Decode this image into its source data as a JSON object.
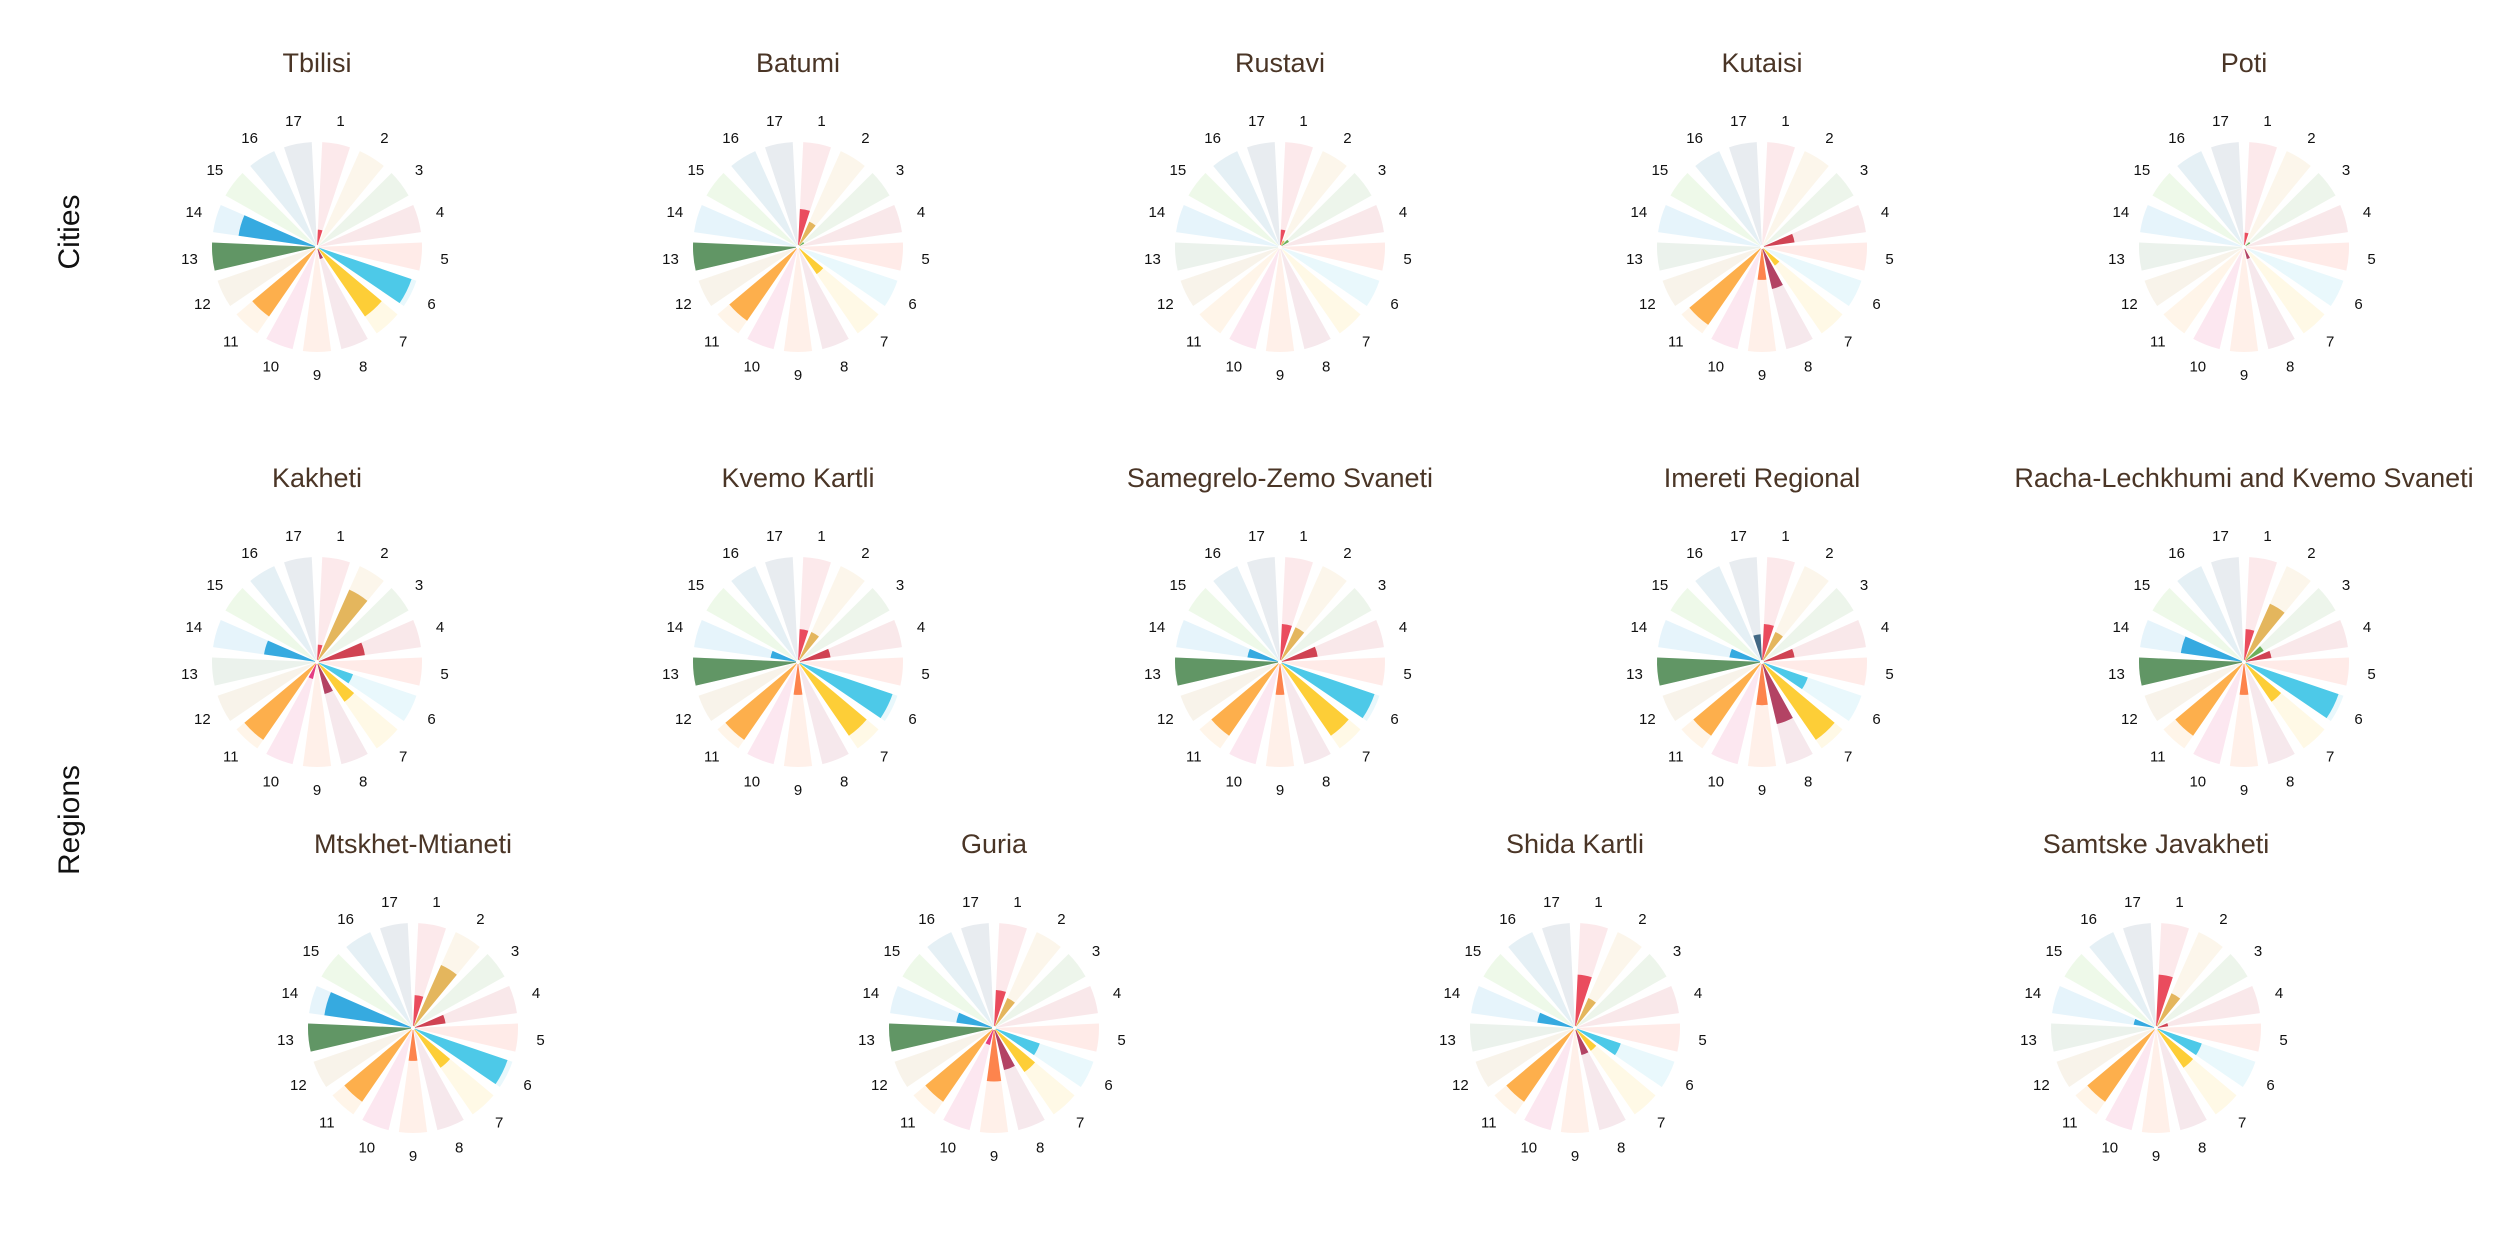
{
  "row_labels": [
    "Cities",
    "Regions"
  ],
  "sdg_colors": [
    "#e5243b",
    "#dda63a",
    "#4c9f38",
    "#c5192d",
    "#ff3a21",
    "#26bde2",
    "#fcc30b",
    "#a21942",
    "#fd6925",
    "#dd1367",
    "#fd9d24",
    "#bf8b2e",
    "#3f7e44",
    "#0a97d9",
    "#56c02b",
    "#00689d",
    "#19486a"
  ],
  "chart_data": [
    {
      "type": "polar-bar",
      "group": "Cities",
      "title": "Tbilisi",
      "categories": [
        "1",
        "2",
        "3",
        "4",
        "5",
        "6",
        "7",
        "8",
        "9",
        "10",
        "11",
        "12",
        "13",
        "14",
        "15",
        "16",
        "17"
      ],
      "values": [
        0.15,
        0,
        0,
        0,
        0,
        0.95,
        0.8,
        0.1,
        0,
        0,
        0.8,
        0,
        1,
        0.75,
        0,
        0,
        0
      ]
    },
    {
      "type": "polar-bar",
      "group": "Cities",
      "title": "Batumi",
      "categories": [
        "1",
        "2",
        "3",
        "4",
        "5",
        "6",
        "7",
        "8",
        "9",
        "10",
        "11",
        "12",
        "13",
        "14",
        "15",
        "16",
        "17"
      ],
      "values": [
        0.35,
        0.25,
        0.05,
        0,
        0,
        0,
        0.3,
        0,
        0,
        0,
        0.85,
        0,
        1,
        0,
        0,
        0,
        0
      ]
    },
    {
      "type": "polar-bar",
      "group": "Cities",
      "title": "Rustavi",
      "categories": [
        "1",
        "2",
        "3",
        "4",
        "5",
        "6",
        "7",
        "8",
        "9",
        "10",
        "11",
        "12",
        "13",
        "14",
        "15",
        "16",
        "17"
      ],
      "values": [
        0.15,
        0.05,
        0.08,
        0,
        0,
        0,
        0,
        0,
        0,
        0,
        0,
        0,
        0,
        0,
        0,
        0,
        0
      ]
    },
    {
      "type": "polar-bar",
      "group": "Cities",
      "title": "Kutaisi",
      "categories": [
        "1",
        "2",
        "3",
        "4",
        "5",
        "6",
        "7",
        "8",
        "9",
        "10",
        "11",
        "12",
        "13",
        "14",
        "15",
        "16",
        "17"
      ],
      "values": [
        0,
        0,
        0,
        0.3,
        0,
        0,
        0.2,
        0.4,
        0.3,
        0,
        0.9,
        0,
        0,
        0,
        0,
        0,
        0
      ]
    },
    {
      "type": "polar-bar",
      "group": "Cities",
      "title": "Poti",
      "categories": [
        "1",
        "2",
        "3",
        "4",
        "5",
        "6",
        "7",
        "8",
        "9",
        "10",
        "11",
        "12",
        "13",
        "14",
        "15",
        "16",
        "17"
      ],
      "values": [
        0.12,
        0,
        0.05,
        0,
        0,
        0,
        0,
        0.1,
        0,
        0,
        0,
        0,
        0,
        0,
        0,
        0,
        0
      ]
    },
    {
      "type": "polar-bar",
      "group": "Regions",
      "title": "Kakheti",
      "categories": [
        "1",
        "2",
        "3",
        "4",
        "5",
        "6",
        "7",
        "8",
        "9",
        "10",
        "11",
        "12",
        "13",
        "14",
        "15",
        "16",
        "17"
      ],
      "values": [
        0.15,
        0.75,
        0,
        0.45,
        0,
        0.35,
        0.45,
        0.3,
        0,
        0.15,
        0.9,
        0,
        0,
        0.5,
        0,
        0,
        0
      ]
    },
    {
      "type": "polar-bar",
      "group": "Regions",
      "title": "Kvemo Kartli",
      "categories": [
        "1",
        "2",
        "3",
        "4",
        "5",
        "6",
        "7",
        "8",
        "9",
        "10",
        "11",
        "12",
        "13",
        "14",
        "15",
        "16",
        "17"
      ],
      "values": [
        0.3,
        0.3,
        0,
        0.3,
        0,
        0.95,
        0.85,
        0,
        0.3,
        0,
        0.9,
        0,
        1,
        0.25,
        0,
        0,
        0
      ]
    },
    {
      "type": "polar-bar",
      "group": "Regions",
      "title": "Samegrelo-Zemo Svaneti",
      "categories": [
        "1",
        "2",
        "3",
        "4",
        "5",
        "6",
        "7",
        "8",
        "9",
        "10",
        "11",
        "12",
        "13",
        "14",
        "15",
        "16",
        "17"
      ],
      "values": [
        0.35,
        0.35,
        0,
        0.35,
        0,
        0.95,
        0.85,
        0,
        0.3,
        0,
        0.85,
        0,
        1,
        0.3,
        0,
        0,
        0
      ]
    },
    {
      "type": "polar-bar",
      "group": "Regions",
      "title": "Imereti Regional",
      "categories": [
        "1",
        "2",
        "3",
        "4",
        "5",
        "6",
        "7",
        "8",
        "9",
        "10",
        "11",
        "12",
        "13",
        "14",
        "15",
        "16",
        "17"
      ],
      "values": [
        0.35,
        0.3,
        0,
        0.3,
        0,
        0.45,
        0.9,
        0.6,
        0.4,
        0,
        0.85,
        0,
        1,
        0.3,
        0,
        0,
        0.25
      ]
    },
    {
      "type": "polar-bar",
      "group": "Regions",
      "title": "Racha-Lechkhumi and Kvemo Svaneti",
      "categories": [
        "1",
        "2",
        "3",
        "4",
        "5",
        "6",
        "7",
        "8",
        "9",
        "10",
        "11",
        "12",
        "13",
        "14",
        "15",
        "16",
        "17"
      ],
      "values": [
        0.3,
        0.6,
        0.2,
        0.25,
        0,
        0.95,
        0.45,
        0,
        0.3,
        0,
        0.85,
        0,
        1,
        0.6,
        0,
        0,
        0
      ]
    },
    {
      "type": "polar-bar",
      "group": "Regions",
      "title": "Mtskhet-Mtianeti",
      "categories": [
        "1",
        "2",
        "3",
        "4",
        "5",
        "6",
        "7",
        "8",
        "9",
        "10",
        "11",
        "12",
        "13",
        "14",
        "15",
        "16",
        "17"
      ],
      "values": [
        0.3,
        0.65,
        0,
        0.3,
        0,
        0.95,
        0.45,
        0,
        0.3,
        0,
        0.85,
        0,
        1,
        0.85,
        0,
        0,
        0
      ]
    },
    {
      "type": "polar-bar",
      "group": "Regions",
      "title": "Guria",
      "categories": [
        "1",
        "2",
        "3",
        "4",
        "5",
        "6",
        "7",
        "8",
        "9",
        "10",
        "11",
        "12",
        "13",
        "14",
        "15",
        "16",
        "17"
      ],
      "values": [
        0.35,
        0.3,
        0,
        0,
        0,
        0.45,
        0.5,
        0.4,
        0.5,
        0.15,
        0.85,
        0,
        1,
        0.35,
        0,
        0,
        0
      ]
    },
    {
      "type": "polar-bar",
      "group": "Regions",
      "title": "Shida Kartli",
      "categories": [
        "1",
        "2",
        "3",
        "4",
        "5",
        "6",
        "7",
        "8",
        "9",
        "10",
        "11",
        "12",
        "13",
        "14",
        "15",
        "16",
        "17"
      ],
      "values": [
        0.5,
        0.3,
        0,
        0,
        0,
        0.45,
        0.25,
        0.25,
        0,
        0,
        0.85,
        0,
        0,
        0.35,
        0,
        0,
        0
      ]
    },
    {
      "type": "polar-bar",
      "group": "Regions",
      "title": "Samtske Javakheti",
      "categories": [
        "1",
        "2",
        "3",
        "4",
        "5",
        "6",
        "7",
        "8",
        "9",
        "10",
        "11",
        "12",
        "13",
        "14",
        "15",
        "16",
        "17"
      ],
      "values": [
        0.5,
        0.35,
        0,
        0.1,
        0,
        0.45,
        0.45,
        0,
        0,
        0,
        0.85,
        0,
        0,
        0.2,
        0,
        0,
        0
      ]
    }
  ]
}
